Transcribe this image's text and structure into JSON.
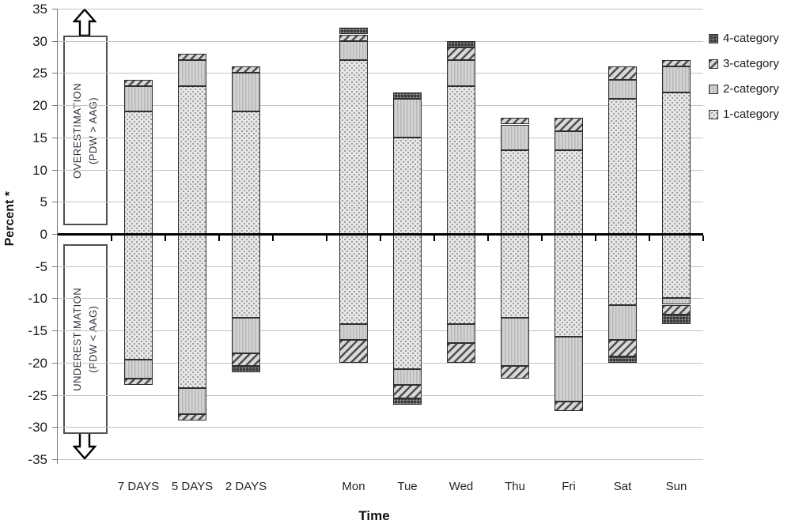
{
  "chart_data": {
    "type": "bar",
    "stacked": true,
    "title": "",
    "xlabel": "Time",
    "ylabel": "Percent *",
    "ylim": [
      -35,
      35
    ],
    "ytick_step": 5,
    "grid": true,
    "legend_position": "top-right",
    "legend_entries": [
      "4-category",
      "3-category",
      "2-category",
      "1-category"
    ],
    "series_names": [
      "1-category",
      "2-category",
      "3-category",
      "4-category"
    ],
    "categories": [
      "7 DAYS",
      "5 DAYS",
      "2 DAYS",
      "Mon",
      "Tue",
      "Wed",
      "Thu",
      "Fri",
      "Sat",
      "Sun"
    ],
    "note": "pos/neg are stacked segment sizes (percent) for categories 1..4; pos stacks up from 0, neg stacks down from 0",
    "bars": [
      {
        "label": "7 DAYS",
        "slot": 1,
        "pos": [
          19,
          4,
          1,
          0
        ],
        "neg": [
          19.5,
          3,
          1,
          0
        ]
      },
      {
        "label": "5 DAYS",
        "slot": 2,
        "pos": [
          23,
          4,
          1,
          0
        ],
        "neg": [
          24,
          4,
          1,
          0
        ]
      },
      {
        "label": "2 DAYS",
        "slot": 3,
        "pos": [
          19,
          6,
          1,
          0
        ],
        "neg": [
          13,
          5.5,
          2,
          1
        ]
      },
      {
        "label": "Mon",
        "slot": 5,
        "pos": [
          27,
          3,
          1,
          1
        ],
        "neg": [
          14,
          2.5,
          3.5,
          0
        ]
      },
      {
        "label": "Tue",
        "slot": 6,
        "pos": [
          15,
          6,
          0,
          1
        ],
        "neg": [
          21,
          2.5,
          2,
          1
        ]
      },
      {
        "label": "Wed",
        "slot": 7,
        "pos": [
          23,
          4,
          2,
          1
        ],
        "neg": [
          14,
          3,
          3,
          0
        ]
      },
      {
        "label": "Thu",
        "slot": 8,
        "pos": [
          13,
          4,
          1,
          0
        ],
        "neg": [
          13,
          7.5,
          2,
          0
        ]
      },
      {
        "label": "Fri",
        "slot": 9,
        "pos": [
          13,
          3,
          2,
          0
        ],
        "neg": [
          16,
          10,
          1.5,
          0
        ]
      },
      {
        "label": "Sat",
        "slot": 10,
        "pos": [
          21,
          3,
          2,
          0
        ],
        "neg": [
          11,
          5.5,
          2.5,
          1
        ]
      },
      {
        "label": "Sun",
        "slot": 11,
        "pos": [
          22,
          4,
          1,
          0
        ],
        "neg": [
          10,
          1,
          1.5,
          1.5
        ]
      }
    ],
    "annotations": {
      "over": {
        "line1": "OVERESTIMATION",
        "line2": "(PDW > AAG)"
      },
      "under": {
        "line1": "UNDERESTIMATION",
        "line2": "(PDW < AAG)"
      }
    },
    "colors": {
      "c1": "#e6e6e6",
      "c2": "#c9c9c9",
      "c3": "#8f8f8f",
      "c4": "#3a3a3a",
      "grid": "#c3c3c3",
      "axis": "#000000"
    }
  }
}
